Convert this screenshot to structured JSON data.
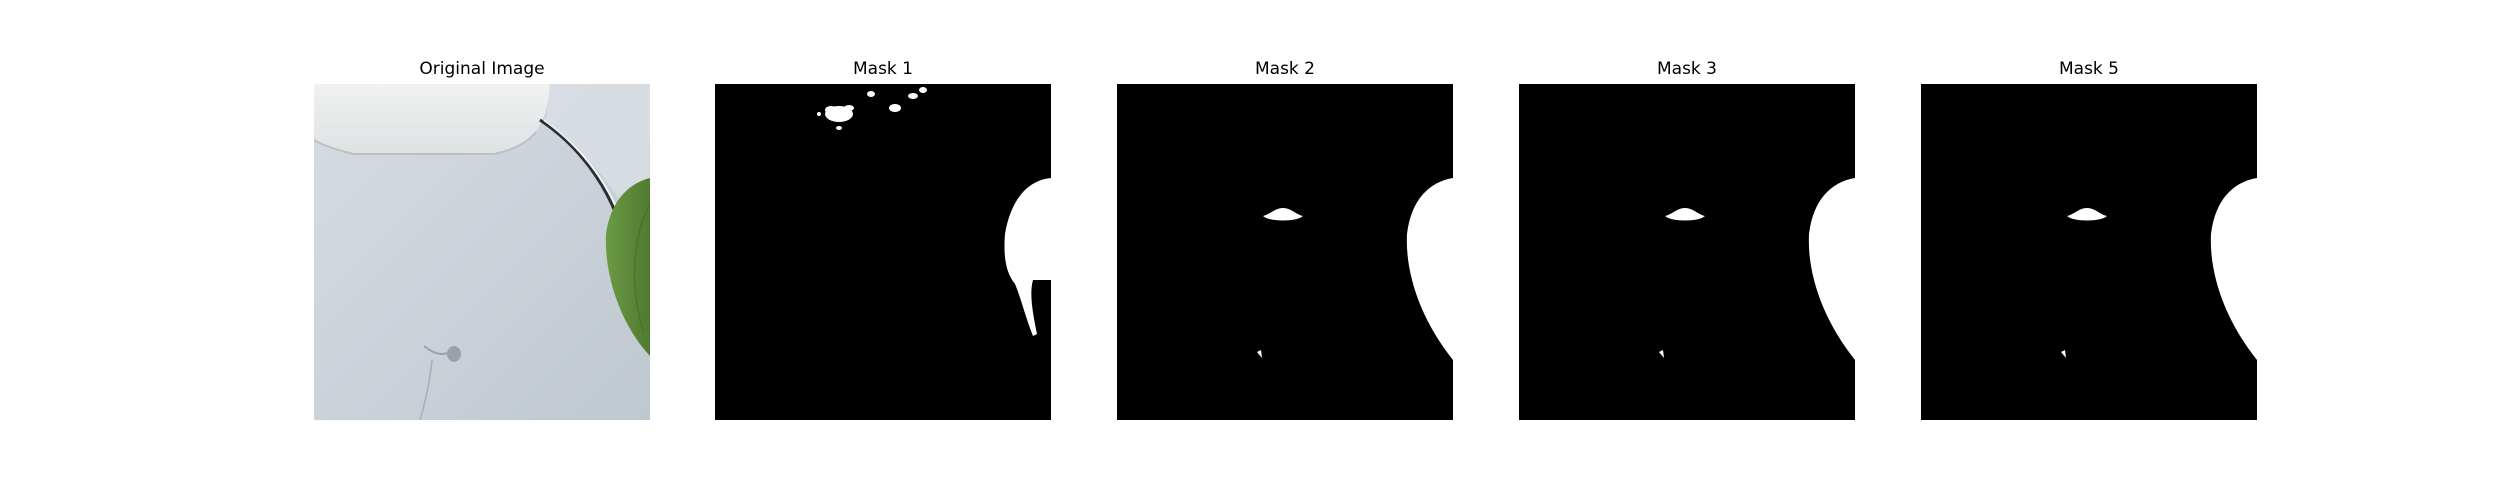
{
  "figure": {
    "background": "#ffffff",
    "panels": [
      {
        "title": "Original Image",
        "kind": "photo"
      },
      {
        "title": "Mask 1",
        "kind": "mask",
        "variant": "a"
      },
      {
        "title": "Mask 2",
        "kind": "mask",
        "variant": "b"
      },
      {
        "title": "Mask 3",
        "kind": "mask",
        "variant": "b"
      },
      {
        "title": "Mask 5",
        "kind": "mask",
        "variant": "b"
      }
    ]
  },
  "colors": {
    "mask_background": "#000000",
    "mask_foreground": "#ffffff",
    "surface_light": "#d8dde2",
    "surface_mid": "#c5ccd3",
    "leaf_green": "#5e8a3a",
    "cup_white": "#eceeee"
  }
}
